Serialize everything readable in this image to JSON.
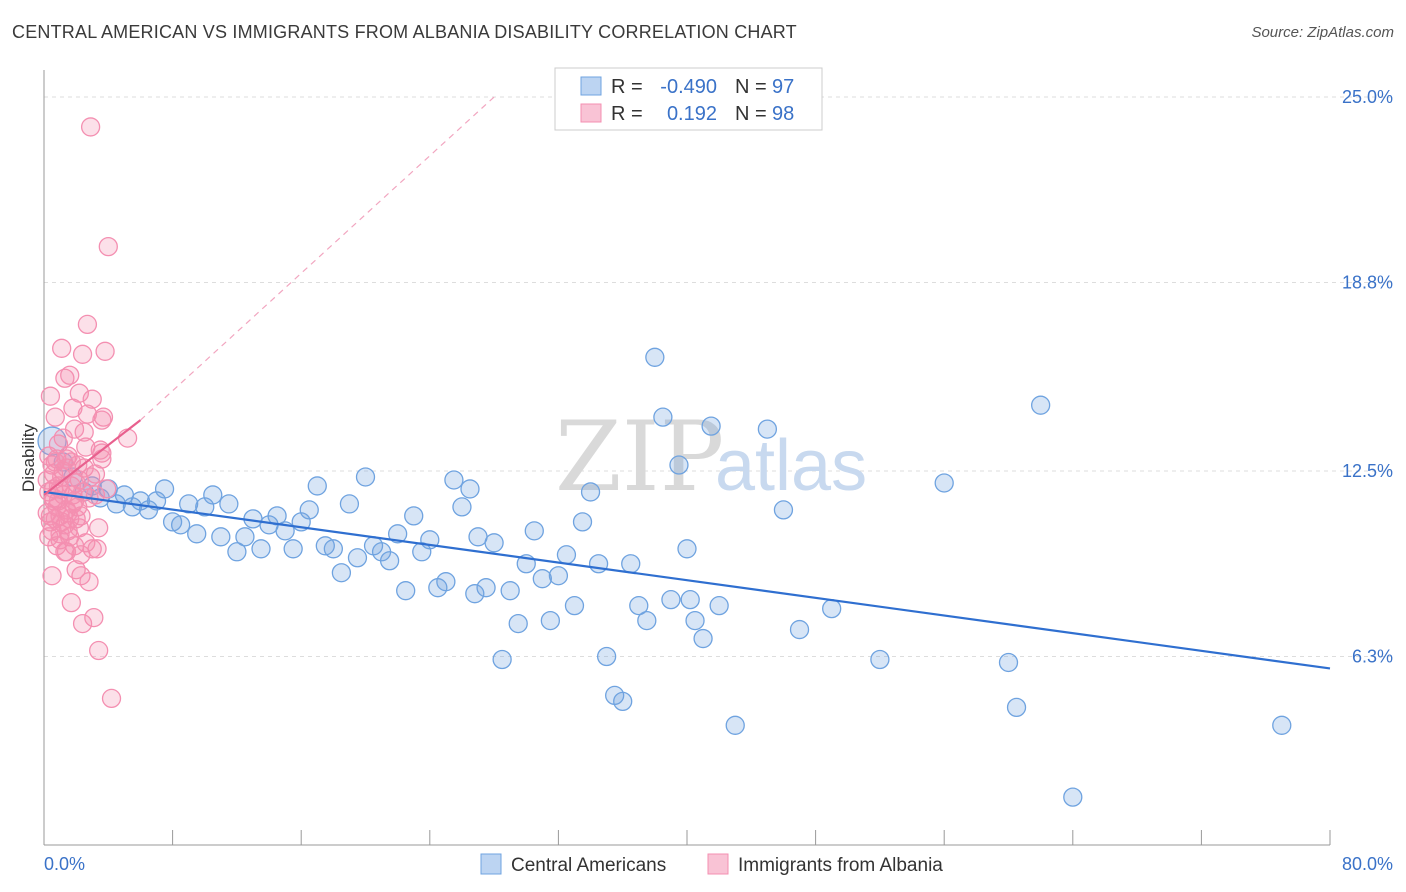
{
  "title": "CENTRAL AMERICAN VS IMMIGRANTS FROM ALBANIA DISABILITY CORRELATION CHART",
  "source": "Source: ZipAtlas.com",
  "watermark": {
    "zip": "ZIP",
    "atlas": "atlas"
  },
  "chart_data": {
    "type": "scatter",
    "ylabel": "Disability",
    "xlim": [
      0,
      80
    ],
    "ylim": [
      0,
      25
    ],
    "x_tick_labels": [
      "0.0%",
      "80.0%"
    ],
    "y_ticks": [
      6.3,
      12.5,
      18.8,
      25.0
    ],
    "y_tick_labels": [
      "6.3%",
      "12.5%",
      "18.8%",
      "25.0%"
    ],
    "legend": {
      "rows": [
        {
          "r_label": "R =",
          "r_value": "-0.490",
          "n_label": "N =",
          "n_value": "97"
        },
        {
          "r_label": "R =",
          "r_value": "0.192",
          "n_label": "N =",
          "n_value": "98"
        }
      ]
    },
    "series": [
      {
        "name": "Central Americans",
        "color": "#6fa3e0",
        "line_color": "#2f6fd0",
        "trend": {
          "x": [
            0,
            80
          ],
          "y": [
            11.8,
            5.9
          ]
        },
        "points": [
          [
            0.5,
            13.5
          ],
          [
            1.2,
            12.8
          ],
          [
            1.8,
            12.3
          ],
          [
            2.5,
            11.8
          ],
          [
            3.0,
            12.0
          ],
          [
            3.5,
            11.6
          ],
          [
            4.0,
            11.9
          ],
          [
            4.5,
            11.4
          ],
          [
            5.0,
            11.7
          ],
          [
            5.5,
            11.3
          ],
          [
            6.0,
            11.5
          ],
          [
            6.5,
            11.2
          ],
          [
            7.0,
            11.5
          ],
          [
            7.5,
            11.9
          ],
          [
            8.0,
            10.8
          ],
          [
            8.5,
            10.7
          ],
          [
            9.0,
            11.4
          ],
          [
            9.5,
            10.4
          ],
          [
            10.0,
            11.3
          ],
          [
            10.5,
            11.7
          ],
          [
            11.0,
            10.3
          ],
          [
            11.5,
            11.4
          ],
          [
            12.0,
            9.8
          ],
          [
            12.5,
            10.3
          ],
          [
            13.0,
            10.9
          ],
          [
            13.5,
            9.9
          ],
          [
            14.0,
            10.7
          ],
          [
            14.5,
            11.0
          ],
          [
            15.0,
            10.5
          ],
          [
            15.5,
            9.9
          ],
          [
            16.0,
            10.8
          ],
          [
            16.5,
            11.2
          ],
          [
            17.0,
            12.0
          ],
          [
            17.5,
            10.0
          ],
          [
            18.0,
            9.9
          ],
          [
            18.5,
            9.1
          ],
          [
            19.0,
            11.4
          ],
          [
            19.5,
            9.6
          ],
          [
            20.0,
            12.3
          ],
          [
            20.5,
            10.0
          ],
          [
            21.0,
            9.8
          ],
          [
            21.5,
            9.5
          ],
          [
            22.0,
            10.4
          ],
          [
            22.5,
            8.5
          ],
          [
            23.0,
            11.0
          ],
          [
            23.5,
            9.8
          ],
          [
            24.0,
            10.2
          ],
          [
            24.5,
            8.6
          ],
          [
            25.0,
            8.8
          ],
          [
            25.5,
            12.2
          ],
          [
            26.0,
            11.3
          ],
          [
            26.5,
            11.9
          ],
          [
            27.0,
            10.3
          ],
          [
            27.5,
            8.6
          ],
          [
            28.0,
            10.1
          ],
          [
            28.5,
            6.2
          ],
          [
            29.0,
            8.5
          ],
          [
            29.5,
            7.4
          ],
          [
            30.0,
            9.4
          ],
          [
            30.5,
            10.5
          ],
          [
            31.0,
            8.9
          ],
          [
            31.5,
            7.5
          ],
          [
            32.0,
            9.0
          ],
          [
            32.5,
            9.7
          ],
          [
            33.0,
            8.0
          ],
          [
            33.5,
            10.8
          ],
          [
            34.0,
            11.8
          ],
          [
            34.5,
            9.4
          ],
          [
            35.0,
            6.3
          ],
          [
            35.5,
            5.0
          ],
          [
            36.0,
            4.8
          ],
          [
            36.5,
            9.4
          ],
          [
            37.0,
            8.0
          ],
          [
            37.5,
            7.5
          ],
          [
            38.0,
            16.3
          ],
          [
            38.5,
            14.3
          ],
          [
            39.0,
            8.2
          ],
          [
            39.5,
            12.7
          ],
          [
            40.0,
            9.9
          ],
          [
            40.5,
            7.5
          ],
          [
            41.0,
            6.9
          ],
          [
            41.5,
            14.0
          ],
          [
            42.0,
            8.0
          ],
          [
            43.0,
            4.0
          ],
          [
            45.0,
            13.9
          ],
          [
            46.0,
            11.2
          ],
          [
            47.0,
            7.2
          ],
          [
            49.0,
            7.9
          ],
          [
            52.0,
            6.2
          ],
          [
            56.0,
            12.1
          ],
          [
            60.0,
            6.1
          ],
          [
            60.5,
            4.6
          ],
          [
            62.0,
            14.7
          ],
          [
            64.0,
            1.6
          ],
          [
            77.0,
            4.0
          ],
          [
            40.2,
            8.2
          ],
          [
            26.8,
            8.4
          ]
        ]
      },
      {
        "name": "Immigrants from Albania",
        "color": "#f48fb1",
        "line_color": "#e8608e",
        "trend": {
          "x": [
            0,
            6
          ],
          "y": [
            11.7,
            14.2
          ]
        },
        "trend_dashed": {
          "x": [
            6,
            28
          ],
          "y": [
            14.2,
            25.0
          ]
        },
        "points": [
          [
            0.2,
            12.2
          ],
          [
            0.3,
            11.8
          ],
          [
            0.4,
            11.0
          ],
          [
            0.5,
            10.5
          ],
          [
            0.6,
            11.5
          ],
          [
            0.7,
            12.8
          ],
          [
            0.8,
            10.0
          ],
          [
            0.9,
            13.4
          ],
          [
            1.0,
            11.9
          ],
          [
            1.1,
            10.8
          ],
          [
            1.2,
            12.5
          ],
          [
            1.3,
            9.8
          ],
          [
            1.4,
            11.2
          ],
          [
            1.5,
            13.0
          ],
          [
            1.6,
            10.3
          ],
          [
            1.7,
            12.0
          ],
          [
            1.8,
            14.6
          ],
          [
            1.9,
            11.5
          ],
          [
            2.0,
            9.2
          ],
          [
            2.1,
            12.7
          ],
          [
            2.2,
            15.1
          ],
          [
            2.3,
            11.0
          ],
          [
            2.4,
            16.4
          ],
          [
            2.5,
            13.8
          ],
          [
            2.6,
            10.1
          ],
          [
            2.7,
            17.4
          ],
          [
            2.8,
            8.8
          ],
          [
            2.9,
            12.3
          ],
          [
            3.0,
            14.9
          ],
          [
            3.1,
            7.6
          ],
          [
            3.2,
            11.7
          ],
          [
            3.3,
            9.9
          ],
          [
            3.4,
            6.5
          ],
          [
            3.5,
            13.2
          ],
          [
            3.6,
            12.9
          ],
          [
            3.7,
            14.3
          ],
          [
            3.8,
            16.5
          ],
          [
            3.9,
            11.9
          ],
          [
            4.0,
            20.0
          ],
          [
            4.2,
            4.9
          ],
          [
            0.3,
            13.0
          ],
          [
            0.5,
            9.0
          ],
          [
            0.7,
            14.3
          ],
          [
            0.9,
            12.0
          ],
          [
            1.1,
            16.6
          ],
          [
            1.3,
            15.6
          ],
          [
            1.5,
            10.5
          ],
          [
            1.7,
            8.1
          ],
          [
            1.9,
            13.9
          ],
          [
            2.1,
            11.3
          ],
          [
            2.3,
            9.7
          ],
          [
            2.5,
            12.6
          ],
          [
            2.7,
            14.4
          ],
          [
            0.4,
            15.0
          ],
          [
            0.6,
            12.4
          ],
          [
            0.8,
            11.3
          ],
          [
            1.0,
            10.2
          ],
          [
            1.2,
            13.6
          ],
          [
            1.4,
            9.8
          ],
          [
            1.6,
            15.7
          ],
          [
            1.8,
            11.7
          ],
          [
            2.0,
            10.9
          ],
          [
            2.2,
            12.2
          ],
          [
            2.4,
            7.4
          ],
          [
            2.6,
            13.3
          ],
          [
            2.8,
            11.6
          ],
          [
            3.0,
            9.9
          ],
          [
            3.2,
            12.4
          ],
          [
            3.4,
            10.6
          ],
          [
            3.6,
            13.1
          ],
          [
            0.2,
            11.1
          ],
          [
            0.4,
            10.8
          ],
          [
            0.6,
            11.9
          ],
          [
            0.8,
            12.9
          ],
          [
            1.0,
            10.4
          ],
          [
            1.2,
            11.7
          ],
          [
            1.4,
            12.6
          ],
          [
            1.6,
            10.9
          ],
          [
            1.8,
            11.4
          ],
          [
            2.0,
            12.1
          ],
          [
            2.2,
            10.6
          ],
          [
            2.4,
            11.8
          ],
          [
            0.3,
            10.3
          ],
          [
            0.5,
            12.7
          ],
          [
            0.7,
            10.9
          ],
          [
            0.9,
            11.5
          ],
          [
            1.1,
            12.3
          ],
          [
            1.3,
            10.7
          ],
          [
            1.5,
            11.1
          ],
          [
            1.7,
            12.8
          ],
          [
            5.2,
            13.6
          ],
          [
            2.9,
            24.0
          ],
          [
            3.6,
            14.2
          ],
          [
            0.6,
            11.6
          ],
          [
            1.0,
            11.0
          ],
          [
            1.4,
            12.9
          ],
          [
            1.9,
            10.0
          ],
          [
            2.3,
            9.0
          ]
        ]
      }
    ]
  }
}
